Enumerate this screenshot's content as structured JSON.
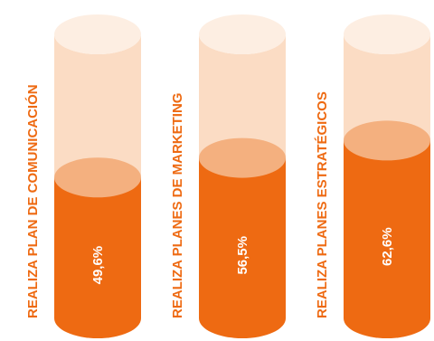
{
  "chart_data": {
    "type": "bar",
    "style": "cylinder",
    "categories": [
      "REALIZA PLAN DE COMUNICACIÓN",
      "REALIZA PLANES DE MARKETING",
      "REALIZA PLANES ESTRATÉGICOS"
    ],
    "values": [
      49.6,
      56.5,
      62.6
    ],
    "value_labels": [
      "49,6%",
      "56,5%",
      "62,6%"
    ],
    "ylim": [
      0,
      100
    ],
    "colors": {
      "fill": "#ee6a12",
      "fill_top": "#f4b07f",
      "empty_body": "#fbdcc4",
      "empty_top": "#fdeee2",
      "value_text": "#ffffff",
      "label_text": "#ee6a12"
    }
  }
}
